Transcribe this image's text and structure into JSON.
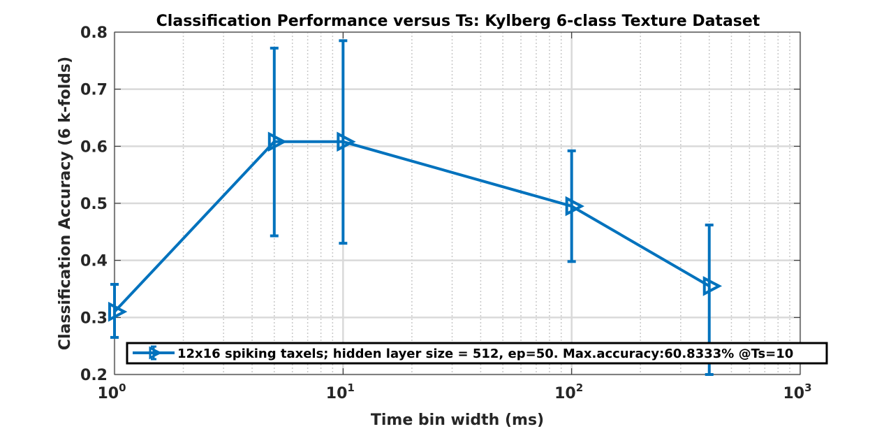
{
  "chart_data": {
    "type": "line",
    "title": "Classification Performance versus Ts: Kylberg 6-class Texture Dataset",
    "xlabel": "Time bin width (ms)",
    "ylabel": "Classification Accuracy (6 k-folds)",
    "xscale": "log",
    "xlim": [
      1,
      1000
    ],
    "ylim": [
      0.2,
      0.8
    ],
    "x_ticks": [
      {
        "value": 1,
        "base": "10",
        "exp": "0"
      },
      {
        "value": 10,
        "base": "10",
        "exp": "1"
      },
      {
        "value": 100,
        "base": "10",
        "exp": "2"
      },
      {
        "value": 1000,
        "base": "10",
        "exp": "3"
      }
    ],
    "y_ticks": [
      "0.2",
      "0.3",
      "0.4",
      "0.5",
      "0.6",
      "0.7",
      "0.8"
    ],
    "grid": true,
    "legend_position": "bottom-right",
    "series": [
      {
        "name": "12x16 spiking taxels; hidden layer size = 512, ep=50. Max.accuracy:60.8333% @Ts=10",
        "color": "#0072BD",
        "marker": "right-triangle",
        "x": [
          1,
          5,
          10,
          100,
          400
        ],
        "y": [
          0.31,
          0.608,
          0.608,
          0.495,
          0.355
        ],
        "err_low": [
          0.265,
          0.443,
          0.43,
          0.398,
          0.2
        ],
        "err_high": [
          0.358,
          0.772,
          0.785,
          0.592,
          0.462
        ]
      }
    ]
  }
}
